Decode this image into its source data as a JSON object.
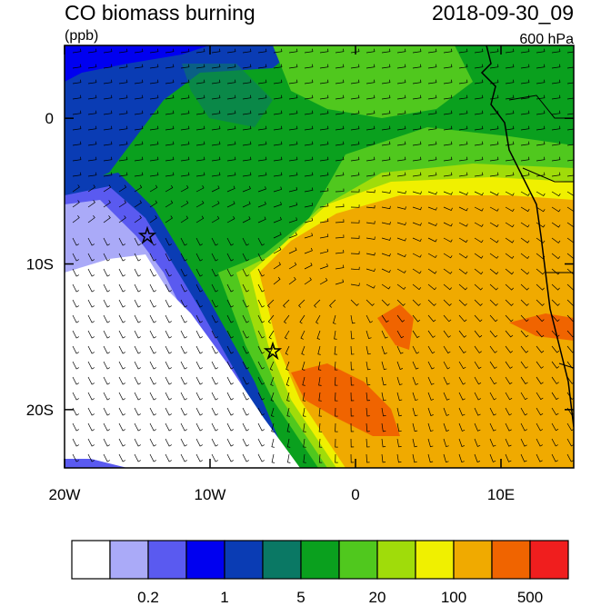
{
  "map": {
    "title": "CO biomass burning",
    "units": "(ppb)",
    "time": "2018-09-30_09",
    "level": "600 hPa",
    "xlim": [
      -20,
      15
    ],
    "ylim": [
      -24,
      5
    ],
    "xticks": [
      {
        "value": -20,
        "label": "20W"
      },
      {
        "value": -10,
        "label": "10W"
      },
      {
        "value": 0,
        "label": "0"
      },
      {
        "value": 10,
        "label": "10E"
      }
    ],
    "yticks": [
      {
        "value": 0,
        "label": "0"
      },
      {
        "value": -10,
        "label": "10S"
      },
      {
        "value": -20,
        "label": "20S"
      }
    ],
    "colorbar": {
      "colors": [
        "#ffffff",
        "#aaaaf8",
        "#5a5af0",
        "#0000f0",
        "#0a3cb4",
        "#0a7864",
        "#0aa01e",
        "#50c81e",
        "#a0dc0a",
        "#f0f000",
        "#f0aa00",
        "#f06400",
        "#f01e1e"
      ],
      "labels": [
        0.2,
        1,
        5,
        20,
        100,
        500
      ]
    }
  }
}
